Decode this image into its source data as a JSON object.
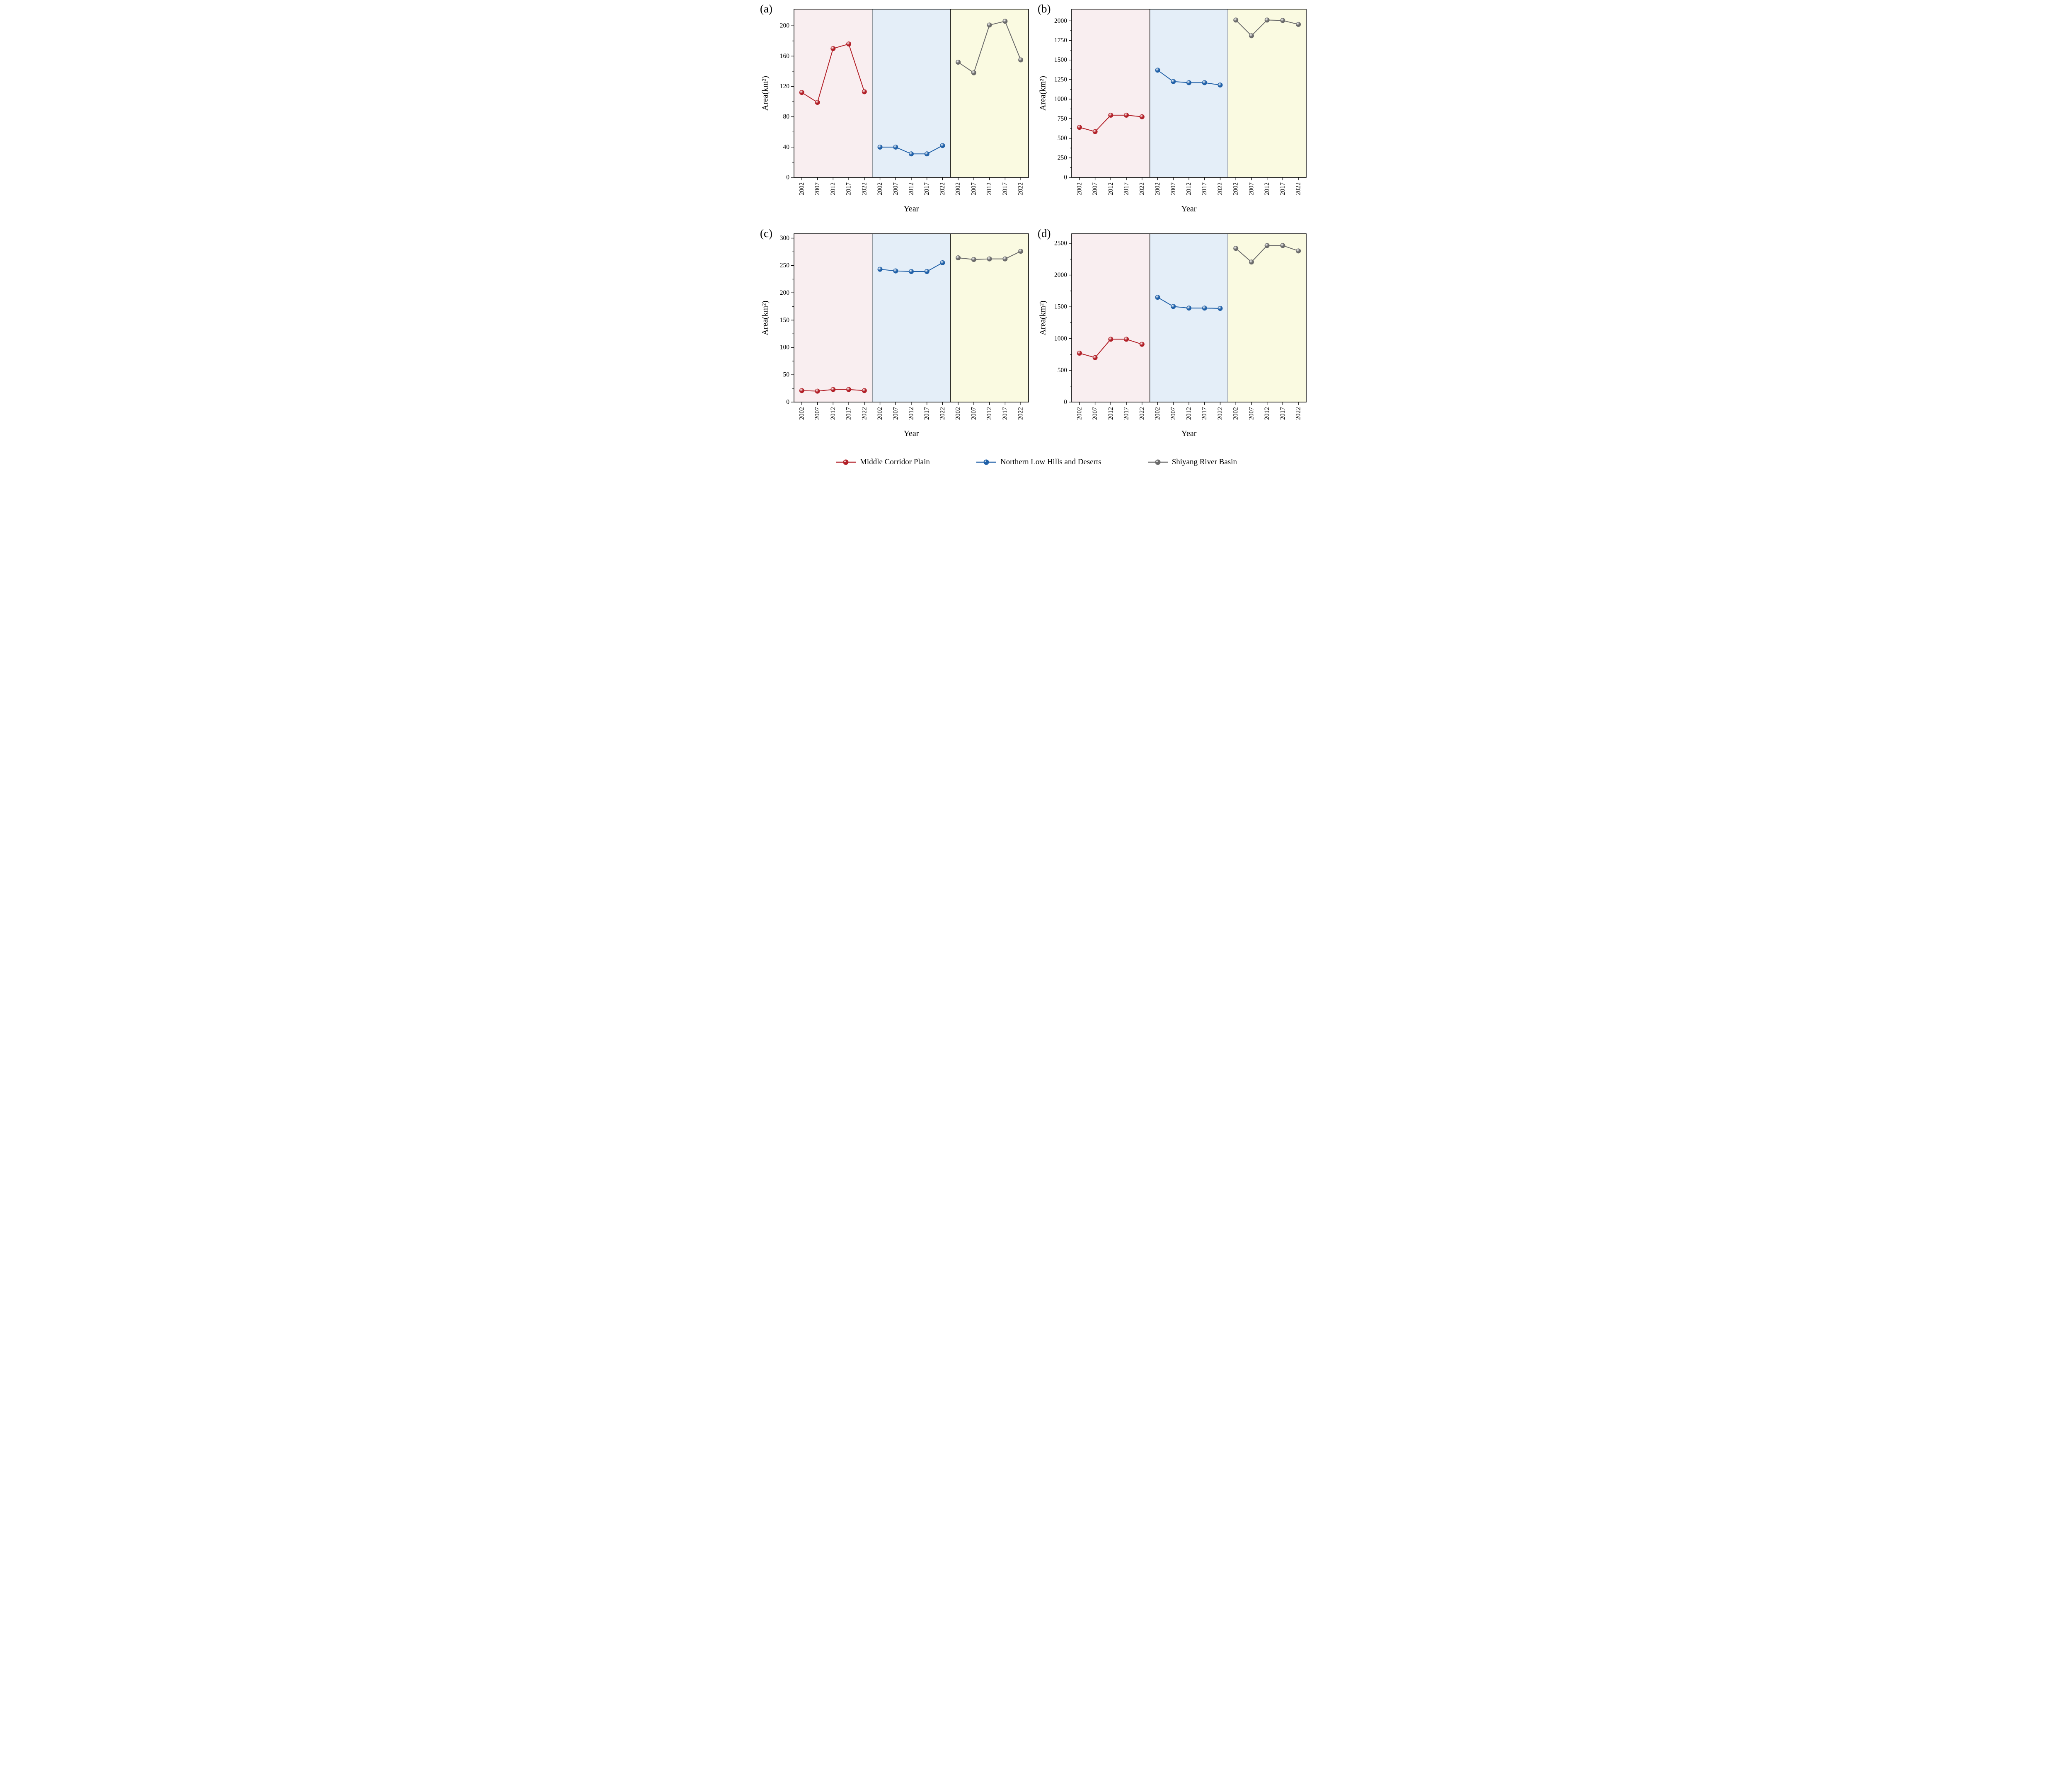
{
  "figure": {
    "xlabel": "Year",
    "ylabel": "Area(km²)",
    "band_colors": [
      "#f9eef0",
      "#e4eef8",
      "#fafae1"
    ],
    "legend": [
      {
        "label": "Middle Corridor Plain",
        "color": "#b22028"
      },
      {
        "label": "Northern Low Hills and Deserts",
        "color": "#2161a8"
      },
      {
        "label": "Shiyang River Basin",
        "color": "#6b6b6b"
      }
    ]
  },
  "chart_data": [
    {
      "type": "line",
      "panel": "(a)",
      "xlabel": "Year",
      "ylabel": "Area(km²)",
      "x_years": [
        2002,
        2007,
        2012,
        2017,
        2022
      ],
      "ylim": [
        0,
        222
      ],
      "yticks": [
        0,
        40,
        80,
        120,
        160,
        200
      ],
      "series": [
        {
          "name": "Middle Corridor Plain",
          "band": 0,
          "values": [
            112,
            99,
            170,
            176,
            113
          ]
        },
        {
          "name": "Northern Low Hills and Deserts",
          "band": 1,
          "values": [
            40,
            40,
            31,
            31,
            42
          ]
        },
        {
          "name": "Shiyang River Basin",
          "band": 2,
          "values": [
            152,
            138,
            201,
            206,
            155
          ]
        }
      ]
    },
    {
      "type": "line",
      "panel": "(b)",
      "xlabel": "Year",
      "ylabel": "Area(km²)",
      "x_years": [
        2002,
        2007,
        2012,
        2017,
        2022
      ],
      "ylim": [
        0,
        2150
      ],
      "yticks": [
        0,
        250,
        500,
        750,
        1000,
        1250,
        1500,
        1750,
        2000
      ],
      "series": [
        {
          "name": "Middle Corridor Plain",
          "band": 0,
          "values": [
            640,
            585,
            795,
            795,
            775
          ]
        },
        {
          "name": "Northern Low Hills and Deserts",
          "band": 1,
          "values": [
            1370,
            1225,
            1210,
            1210,
            1180
          ]
        },
        {
          "name": "Shiyang River Basin",
          "band": 2,
          "values": [
            2010,
            1810,
            2010,
            2005,
            1955
          ]
        }
      ]
    },
    {
      "type": "line",
      "panel": "(c)",
      "xlabel": "Year",
      "ylabel": "Area(km²)",
      "x_years": [
        2002,
        2007,
        2012,
        2017,
        2022
      ],
      "ylim": [
        0,
        308
      ],
      "yticks": [
        0,
        50,
        100,
        150,
        200,
        250,
        300
      ],
      "series": [
        {
          "name": "Middle Corridor Plain",
          "band": 0,
          "values": [
            21,
            20,
            23,
            23,
            21
          ]
        },
        {
          "name": "Northern Low Hills and Deserts",
          "band": 1,
          "values": [
            243,
            240,
            239,
            239,
            255
          ]
        },
        {
          "name": "Shiyang River Basin",
          "band": 2,
          "values": [
            264,
            261,
            262,
            262,
            276
          ]
        }
      ]
    },
    {
      "type": "line",
      "panel": "(d)",
      "xlabel": "Year",
      "ylabel": "Area(km²)",
      "x_years": [
        2002,
        2007,
        2012,
        2017,
        2022
      ],
      "ylim": [
        0,
        2650
      ],
      "yticks": [
        0,
        500,
        1000,
        1500,
        2000,
        2500
      ],
      "series": [
        {
          "name": "Middle Corridor Plain",
          "band": 0,
          "values": [
            770,
            700,
            990,
            990,
            910
          ]
        },
        {
          "name": "Northern Low Hills and Deserts",
          "band": 1,
          "values": [
            1650,
            1505,
            1480,
            1480,
            1475
          ]
        },
        {
          "name": "Shiyang River Basin",
          "band": 2,
          "values": [
            2420,
            2205,
            2465,
            2465,
            2380
          ]
        }
      ]
    }
  ]
}
